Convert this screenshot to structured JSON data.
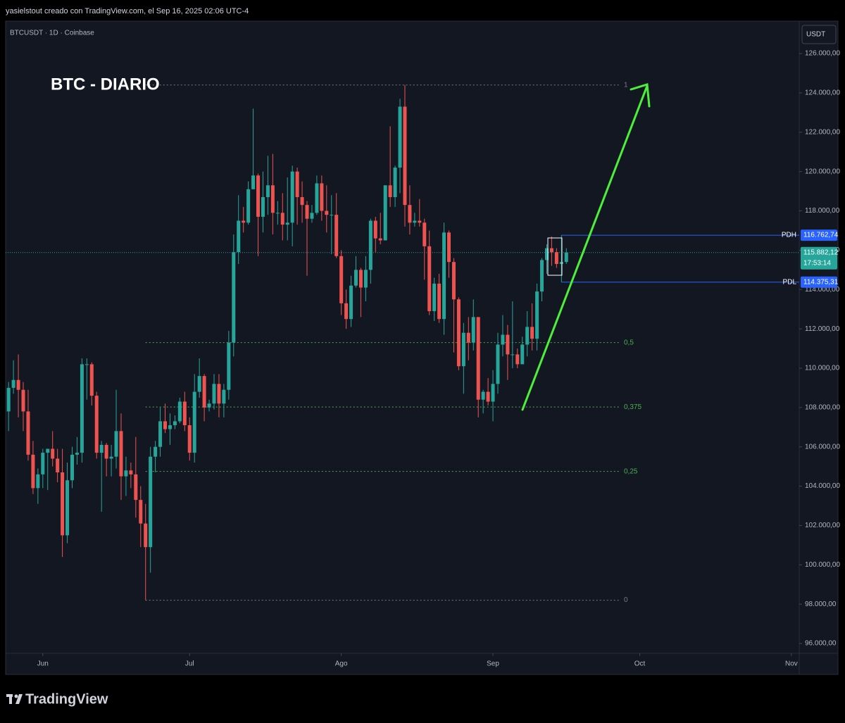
{
  "header": "yasielstout creado con TradingView.com, el Sep 16, 2025 02:06 UTC-4",
  "brand": "TradingView",
  "chart_data": {
    "type": "candlestick",
    "title": "BTC - DIARIO",
    "subtitle": "BTCUSDT · 1D · Coinbase",
    "y_label": "USDT",
    "colors": {
      "up": "#26a69a",
      "down": "#ef5350"
    },
    "x": [
      -7,
      -6,
      -5,
      -4,
      -3,
      -2,
      -1,
      0,
      1,
      2,
      3,
      4,
      5,
      6,
      7,
      8,
      9,
      10,
      11,
      12,
      13,
      14,
      15,
      16,
      17,
      18,
      19,
      20,
      21,
      22,
      23,
      24,
      25,
      26,
      27,
      28,
      29,
      30,
      31,
      32,
      33,
      34,
      35,
      36,
      37,
      38,
      39,
      40,
      41,
      42,
      43,
      44,
      45,
      46,
      47,
      48,
      49,
      50,
      51,
      52,
      53,
      54,
      55,
      56,
      57,
      58,
      59,
      60,
      61,
      62,
      63,
      64,
      65,
      66,
      67,
      68,
      69,
      70,
      71,
      72,
      73,
      74,
      75,
      76,
      77,
      78,
      79,
      80,
      81,
      82,
      83,
      84,
      85,
      86,
      87,
      88,
      89,
      90,
      91,
      92,
      93,
      94,
      95,
      96,
      97,
      98,
      99,
      100,
      101,
      102,
      103,
      104,
      105,
      106,
      107
    ],
    "open": [
      107800,
      109000,
      109400,
      108900,
      107800,
      105600,
      103900,
      104600,
      105700,
      105900,
      105400,
      104700,
      101500,
      104300,
      105600,
      105700,
      110200,
      110200,
      108600,
      105700,
      106100,
      105400,
      105500,
      106800,
      104500,
      104800,
      104600,
      103300,
      102100,
      100900,
      105500,
      106000,
      107300,
      106900,
      107100,
      107300,
      108300,
      107100,
      105700,
      108800,
      109600,
      108000,
      108200,
      109200,
      108200,
      108900,
      111300,
      115900,
      117500,
      117400,
      119100,
      119800,
      117700,
      118700,
      119300,
      117900,
      117900,
      117300,
      117400,
      120000,
      118700,
      118300,
      117600,
      117900,
      119400,
      118000,
      117800,
      117800,
      115700,
      113300,
      112500,
      114200,
      115000,
      114100,
      115000,
      117500,
      116600,
      116500,
      119300,
      118700,
      120200,
      123300,
      118300,
      117400,
      117500,
      117400,
      116200,
      112900,
      114300,
      112500,
      116900,
      115400,
      113500,
      110100,
      111800,
      111300,
      112600,
      108400,
      108800,
      108300,
      109200,
      111200,
      111700,
      110700,
      110700,
      110200,
      111200,
      112100,
      111500,
      113900,
      115500,
      116100,
      115900,
      115300,
      115400
    ],
    "high": [
      109300,
      110400,
      110700,
      109300,
      108900,
      106300,
      104900,
      105900,
      105900,
      106800,
      105900,
      105900,
      105200,
      106000,
      106500,
      110500,
      110500,
      110300,
      108800,
      106300,
      106200,
      106100,
      108900,
      107700,
      105500,
      105200,
      106500,
      104000,
      103100,
      106000,
      106300,
      108000,
      108200,
      107700,
      107600,
      108500,
      108800,
      107500,
      109700,
      110500,
      109700,
      108400,
      109700,
      109700,
      109200,
      111900,
      116800,
      118800,
      118200,
      119500,
      123200,
      119900,
      120000,
      120800,
      120900,
      118500,
      118900,
      119700,
      120300,
      120200,
      119500,
      118500,
      118300,
      119800,
      119800,
      119300,
      118800,
      118900,
      116000,
      114000,
      114700,
      115700,
      115100,
      115700,
      117600,
      117700,
      117900,
      119300,
      122300,
      120300,
      123700,
      124400,
      119300,
      117900,
      118600,
      117600,
      117000,
      114600,
      114800,
      117400,
      117000,
      115600,
      113600,
      112300,
      112600,
      113500,
      112600,
      108900,
      109500,
      109900,
      111800,
      112700,
      112200,
      113400,
      111000,
      111600,
      112900,
      113300,
      114300,
      115600,
      116300,
      116700,
      116100,
      116762.74,
      116100
    ],
    "low": [
      106800,
      108700,
      107500,
      106800,
      105300,
      103600,
      103100,
      103900,
      103800,
      105000,
      104200,
      100400,
      101100,
      103900,
      105100,
      105200,
      108400,
      108100,
      105400,
      102700,
      104500,
      104500,
      104900,
      103300,
      103500,
      103900,
      102400,
      100900,
      98200,
      99600,
      104700,
      105500,
      106700,
      106100,
      106900,
      107200,
      106800,
      105300,
      105200,
      108500,
      107300,
      107800,
      107900,
      107500,
      107500,
      108400,
      110600,
      115300,
      116900,
      117300,
      119100,
      115700,
      116900,
      117800,
      116800,
      117300,
      116500,
      116500,
      116200,
      117300,
      117400,
      114700,
      117400,
      117800,
      117500,
      116900,
      115800,
      115600,
      112700,
      112000,
      112100,
      114100,
      112600,
      113400,
      114300,
      115900,
      116300,
      116500,
      118200,
      118200,
      118900,
      117200,
      116800,
      117200,
      117200,
      114500,
      112700,
      112400,
      112300,
      111700,
      114600,
      110800,
      109900,
      108700,
      110400,
      110900,
      107500,
      107700,
      108100,
      107300,
      108700,
      110600,
      109400,
      110000,
      110000,
      110300,
      110600,
      110900,
      110900,
      113400,
      114800,
      115200,
      115100,
      114375.31,
      115300
    ],
    "close": [
      109000,
      109400,
      108900,
      107800,
      105600,
      103900,
      104600,
      105700,
      105900,
      105400,
      104700,
      101500,
      104300,
      105600,
      105700,
      110200,
      110200,
      108600,
      105700,
      106100,
      105400,
      105500,
      106800,
      104500,
      104800,
      104600,
      103300,
      102100,
      100900,
      105500,
      106000,
      107300,
      106900,
      107100,
      107300,
      108300,
      107100,
      105700,
      108800,
      109600,
      108000,
      108200,
      109200,
      108200,
      108900,
      111300,
      115900,
      117500,
      117400,
      119100,
      119800,
      117700,
      118700,
      119300,
      117900,
      117900,
      117300,
      117400,
      120000,
      118700,
      118300,
      117600,
      117900,
      119400,
      118000,
      117800,
      117800,
      115700,
      113300,
      112500,
      114200,
      115000,
      114100,
      115000,
      117500,
      116600,
      116500,
      119300,
      118700,
      120200,
      123300,
      118300,
      117400,
      117500,
      117400,
      116200,
      112900,
      114300,
      112500,
      116900,
      115400,
      113500,
      110100,
      111800,
      111300,
      112600,
      108400,
      108800,
      108300,
      109200,
      111200,
      111700,
      110700,
      110700,
      110200,
      111200,
      112100,
      111500,
      113900,
      115500,
      116100,
      115900,
      115300,
      115400,
      115882.12
    ],
    "xlim": [
      -7.6,
      154.6
    ],
    "xticks": [
      {
        "value": 0,
        "label": "Jun"
      },
      {
        "value": 30,
        "label": "Jul"
      },
      {
        "value": 61,
        "label": "Ago"
      },
      {
        "value": 92,
        "label": "Sep"
      },
      {
        "value": 122,
        "label": "Oct"
      },
      {
        "value": 153,
        "label": "Nov"
      }
    ],
    "ylim": [
      95500,
      127650
    ],
    "yticks": [
      {
        "value": 96000,
        "label": "96.000,00"
      },
      {
        "value": 98000,
        "label": "98.000,00"
      },
      {
        "value": 100000,
        "label": "100.000,00"
      },
      {
        "value": 102000,
        "label": "102.000,00"
      },
      {
        "value": 104000,
        "label": "104.000,00"
      },
      {
        "value": 106000,
        "label": "106.000,00"
      },
      {
        "value": 108000,
        "label": "108.000,00"
      },
      {
        "value": 110000,
        "label": "110.000,00"
      },
      {
        "value": 112000,
        "label": "112.000,00"
      },
      {
        "value": 114000,
        "label": "114.000,00"
      },
      {
        "value": 116000,
        "label": "116.000,00"
      },
      {
        "value": 118000,
        "label": "118.000,00"
      },
      {
        "value": 120000,
        "label": "120.000,00"
      },
      {
        "value": 122000,
        "label": "122.000,00"
      },
      {
        "value": 124000,
        "label": "124.000,00"
      },
      {
        "value": 126000,
        "label": "126.000,00"
      }
    ],
    "fib": {
      "low": 98200,
      "high": 124400,
      "levels": [
        {
          "ratio": 1,
          "label": "1",
          "color": "#787b86"
        },
        {
          "ratio": 0.5,
          "label": "0,5",
          "color": "#4caf50"
        },
        {
          "ratio": 0.375,
          "label": "0,375",
          "color": "#4caf50"
        },
        {
          "ratio": 0.25,
          "label": "0,25",
          "color": "#4caf50"
        },
        {
          "ratio": 0,
          "label": "0",
          "color": "#787b86"
        }
      ]
    },
    "levels": [
      {
        "name": "PDH",
        "value": 116762.74,
        "label": "116.762,74",
        "color": "#2962ff"
      },
      {
        "name": "PDL",
        "value": 114375.31,
        "label": "114.375,31",
        "color": "#2962ff"
      }
    ],
    "last": {
      "value": 115882.12,
      "label": "115.882,12",
      "countdown": "17:53:14",
      "color": "#26a69a"
    }
  }
}
